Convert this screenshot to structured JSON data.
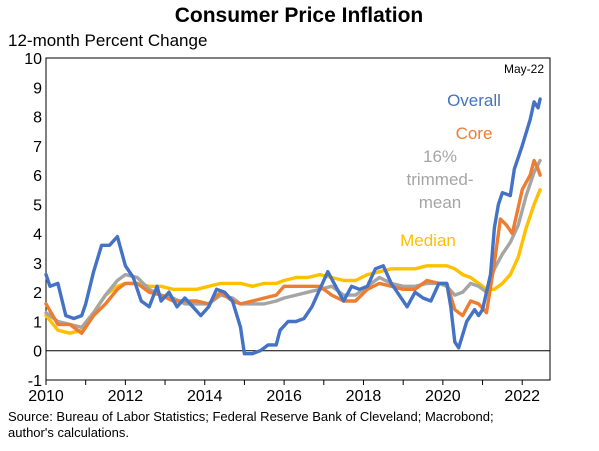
{
  "chart_data": {
    "type": "line",
    "title": "Consumer Price Inflation",
    "ylabel": "12-month Percent Change",
    "xlabel": "",
    "note": "May-22",
    "source": "Source: Bureau of Labor Statistics; Federal Reserve Bank of Cleveland; Macrobond; author's calculations.",
    "xlim": [
      2010,
      2022.7
    ],
    "ylim": [
      -1,
      10
    ],
    "x_ticks": [
      "2010",
      "2012",
      "2014",
      "2016",
      "2018",
      "2020",
      "2022"
    ],
    "y_ticks": [
      "-1",
      "0",
      "1",
      "2",
      "3",
      "4",
      "5",
      "6",
      "7",
      "8",
      "9",
      "10"
    ],
    "series": [
      {
        "name": "Overall",
        "color": "#4472C4",
        "points": [
          [
            2010.0,
            2.6
          ],
          [
            2010.1,
            2.2
          ],
          [
            2010.3,
            2.3
          ],
          [
            2010.5,
            1.2
          ],
          [
            2010.7,
            1.1
          ],
          [
            2010.9,
            1.2
          ],
          [
            2011.0,
            1.6
          ],
          [
            2011.2,
            2.7
          ],
          [
            2011.4,
            3.6
          ],
          [
            2011.6,
            3.6
          ],
          [
            2011.8,
            3.9
          ],
          [
            2011.9,
            3.4
          ],
          [
            2012.0,
            2.9
          ],
          [
            2012.2,
            2.5
          ],
          [
            2012.4,
            1.7
          ],
          [
            2012.6,
            1.5
          ],
          [
            2012.8,
            2.2
          ],
          [
            2012.9,
            1.7
          ],
          [
            2013.1,
            2.0
          ],
          [
            2013.3,
            1.5
          ],
          [
            2013.5,
            1.8
          ],
          [
            2013.7,
            1.5
          ],
          [
            2013.9,
            1.2
          ],
          [
            2014.1,
            1.5
          ],
          [
            2014.3,
            2.1
          ],
          [
            2014.5,
            2.0
          ],
          [
            2014.7,
            1.7
          ],
          [
            2014.9,
            0.8
          ],
          [
            2015.0,
            -0.1
          ],
          [
            2015.2,
            -0.1
          ],
          [
            2015.4,
            0.0
          ],
          [
            2015.6,
            0.2
          ],
          [
            2015.8,
            0.2
          ],
          [
            2015.9,
            0.7
          ],
          [
            2016.1,
            1.0
          ],
          [
            2016.3,
            1.0
          ],
          [
            2016.5,
            1.1
          ],
          [
            2016.7,
            1.5
          ],
          [
            2016.9,
            2.1
          ],
          [
            2017.1,
            2.7
          ],
          [
            2017.3,
            2.2
          ],
          [
            2017.5,
            1.7
          ],
          [
            2017.7,
            2.2
          ],
          [
            2017.9,
            2.1
          ],
          [
            2018.1,
            2.2
          ],
          [
            2018.3,
            2.8
          ],
          [
            2018.5,
            2.9
          ],
          [
            2018.7,
            2.3
          ],
          [
            2018.9,
            1.9
          ],
          [
            2019.1,
            1.5
          ],
          [
            2019.3,
            2.0
          ],
          [
            2019.5,
            1.8
          ],
          [
            2019.7,
            1.7
          ],
          [
            2019.9,
            2.3
          ],
          [
            2020.1,
            2.3
          ],
          [
            2020.2,
            1.5
          ],
          [
            2020.3,
            0.3
          ],
          [
            2020.4,
            0.1
          ],
          [
            2020.6,
            1.0
          ],
          [
            2020.8,
            1.4
          ],
          [
            2020.9,
            1.2
          ],
          [
            2021.0,
            1.4
          ],
          [
            2021.2,
            2.6
          ],
          [
            2021.3,
            4.2
          ],
          [
            2021.4,
            5.0
          ],
          [
            2021.5,
            5.4
          ],
          [
            2021.7,
            5.3
          ],
          [
            2021.8,
            6.2
          ],
          [
            2022.0,
            7.0
          ],
          [
            2022.2,
            7.9
          ],
          [
            2022.3,
            8.5
          ],
          [
            2022.4,
            8.3
          ],
          [
            2022.45,
            8.6
          ]
        ]
      },
      {
        "name": "Core",
        "color": "#ED7D31",
        "points": [
          [
            2010.0,
            1.6
          ],
          [
            2010.3,
            0.9
          ],
          [
            2010.6,
            0.9
          ],
          [
            2010.9,
            0.6
          ],
          [
            2011.2,
            1.2
          ],
          [
            2011.5,
            1.6
          ],
          [
            2011.8,
            2.1
          ],
          [
            2012.0,
            2.3
          ],
          [
            2012.3,
            2.3
          ],
          [
            2012.6,
            2.0
          ],
          [
            2012.9,
            1.9
          ],
          [
            2013.2,
            1.7
          ],
          [
            2013.5,
            1.7
          ],
          [
            2013.8,
            1.7
          ],
          [
            2014.1,
            1.6
          ],
          [
            2014.4,
            2.0
          ],
          [
            2014.7,
            1.7
          ],
          [
            2014.9,
            1.6
          ],
          [
            2015.2,
            1.7
          ],
          [
            2015.5,
            1.8
          ],
          [
            2015.8,
            1.9
          ],
          [
            2016.0,
            2.2
          ],
          [
            2016.3,
            2.2
          ],
          [
            2016.6,
            2.2
          ],
          [
            2016.9,
            2.2
          ],
          [
            2017.2,
            1.9
          ],
          [
            2017.5,
            1.7
          ],
          [
            2017.8,
            1.7
          ],
          [
            2018.1,
            2.1
          ],
          [
            2018.4,
            2.3
          ],
          [
            2018.7,
            2.2
          ],
          [
            2019.0,
            2.1
          ],
          [
            2019.3,
            2.1
          ],
          [
            2019.6,
            2.4
          ],
          [
            2019.9,
            2.3
          ],
          [
            2020.1,
            2.3
          ],
          [
            2020.3,
            1.4
          ],
          [
            2020.5,
            1.2
          ],
          [
            2020.7,
            1.7
          ],
          [
            2020.9,
            1.6
          ],
          [
            2021.1,
            1.3
          ],
          [
            2021.3,
            3.0
          ],
          [
            2021.45,
            4.5
          ],
          [
            2021.6,
            4.3
          ],
          [
            2021.75,
            4.0
          ],
          [
            2021.9,
            4.9
          ],
          [
            2022.0,
            5.5
          ],
          [
            2022.2,
            6.0
          ],
          [
            2022.3,
            6.5
          ],
          [
            2022.4,
            6.2
          ],
          [
            2022.45,
            6.0
          ]
        ]
      },
      {
        "name": "16% trimmed-mean",
        "color": "#A5A5A5",
        "points": [
          [
            2010.0,
            1.3
          ],
          [
            2010.3,
            1.0
          ],
          [
            2010.6,
            0.9
          ],
          [
            2010.9,
            0.8
          ],
          [
            2011.2,
            1.3
          ],
          [
            2011.5,
            1.9
          ],
          [
            2011.8,
            2.4
          ],
          [
            2012.0,
            2.6
          ],
          [
            2012.3,
            2.5
          ],
          [
            2012.6,
            2.1
          ],
          [
            2012.9,
            1.9
          ],
          [
            2013.2,
            1.8
          ],
          [
            2013.5,
            1.6
          ],
          [
            2013.8,
            1.6
          ],
          [
            2014.1,
            1.6
          ],
          [
            2014.4,
            1.9
          ],
          [
            2014.7,
            1.8
          ],
          [
            2014.9,
            1.6
          ],
          [
            2015.2,
            1.6
          ],
          [
            2015.5,
            1.6
          ],
          [
            2015.8,
            1.7
          ],
          [
            2016.0,
            1.8
          ],
          [
            2016.3,
            1.9
          ],
          [
            2016.6,
            2.0
          ],
          [
            2016.9,
            2.1
          ],
          [
            2017.2,
            2.2
          ],
          [
            2017.5,
            1.9
          ],
          [
            2017.8,
            1.9
          ],
          [
            2018.1,
            2.2
          ],
          [
            2018.4,
            2.5
          ],
          [
            2018.7,
            2.3
          ],
          [
            2019.0,
            2.2
          ],
          [
            2019.3,
            2.2
          ],
          [
            2019.6,
            2.3
          ],
          [
            2019.9,
            2.3
          ],
          [
            2020.1,
            2.2
          ],
          [
            2020.3,
            1.9
          ],
          [
            2020.5,
            2.0
          ],
          [
            2020.7,
            2.3
          ],
          [
            2020.9,
            2.2
          ],
          [
            2021.1,
            2.0
          ],
          [
            2021.3,
            2.8
          ],
          [
            2021.5,
            3.3
          ],
          [
            2021.7,
            3.7
          ],
          [
            2021.9,
            4.3
          ],
          [
            2022.1,
            5.3
          ],
          [
            2022.3,
            6.1
          ],
          [
            2022.45,
            6.5
          ]
        ]
      },
      {
        "name": "Median",
        "color": "#FFC000",
        "points": [
          [
            2010.0,
            1.2
          ],
          [
            2010.3,
            0.7
          ],
          [
            2010.6,
            0.6
          ],
          [
            2010.9,
            0.7
          ],
          [
            2011.2,
            1.3
          ],
          [
            2011.5,
            1.9
          ],
          [
            2011.8,
            2.2
          ],
          [
            2012.0,
            2.3
          ],
          [
            2012.3,
            2.3
          ],
          [
            2012.6,
            2.2
          ],
          [
            2012.9,
            2.2
          ],
          [
            2013.2,
            2.1
          ],
          [
            2013.5,
            2.1
          ],
          [
            2013.8,
            2.1
          ],
          [
            2014.1,
            2.2
          ],
          [
            2014.4,
            2.3
          ],
          [
            2014.7,
            2.3
          ],
          [
            2014.9,
            2.3
          ],
          [
            2015.2,
            2.2
          ],
          [
            2015.5,
            2.3
          ],
          [
            2015.8,
            2.3
          ],
          [
            2016.0,
            2.4
          ],
          [
            2016.3,
            2.5
          ],
          [
            2016.6,
            2.5
          ],
          [
            2016.9,
            2.6
          ],
          [
            2017.2,
            2.5
          ],
          [
            2017.5,
            2.4
          ],
          [
            2017.8,
            2.4
          ],
          [
            2018.1,
            2.6
          ],
          [
            2018.4,
            2.7
          ],
          [
            2018.7,
            2.8
          ],
          [
            2019.0,
            2.8
          ],
          [
            2019.3,
            2.8
          ],
          [
            2019.6,
            2.9
          ],
          [
            2019.9,
            2.9
          ],
          [
            2020.1,
            2.9
          ],
          [
            2020.3,
            2.8
          ],
          [
            2020.5,
            2.6
          ],
          [
            2020.7,
            2.5
          ],
          [
            2020.9,
            2.3
          ],
          [
            2021.1,
            2.1
          ],
          [
            2021.3,
            2.1
          ],
          [
            2021.5,
            2.3
          ],
          [
            2021.7,
            2.6
          ],
          [
            2021.9,
            3.2
          ],
          [
            2022.1,
            4.2
          ],
          [
            2022.3,
            5.0
          ],
          [
            2022.45,
            5.5
          ]
        ]
      }
    ],
    "series_labels": [
      {
        "series": "Overall",
        "lines": [
          "Overall"
        ],
        "color": "#4472C4"
      },
      {
        "series": "Core",
        "lines": [
          "Core"
        ],
        "color": "#ED7D31"
      },
      {
        "series": "16% trimmed-mean",
        "lines": [
          "16%",
          "trimmed-",
          "mean"
        ],
        "color": "#A5A5A5"
      },
      {
        "series": "Median",
        "lines": [
          "Median"
        ],
        "color": "#FFC000"
      }
    ]
  }
}
